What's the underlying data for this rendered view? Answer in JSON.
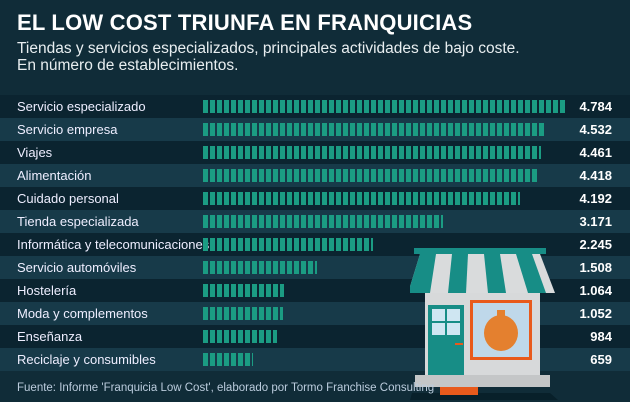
{
  "header": {
    "title": "EL LOW COST TRIUNFA EN FRANQUICIAS",
    "subtitle_1": "Tiendas y servicios especializados, principales actividades de bajo coste.",
    "subtitle_2": "En número de establecimientos."
  },
  "chart_data": {
    "type": "bar",
    "orientation": "horizontal",
    "categories": [
      "Servicio especializado",
      "Servicio empresa",
      "Viajes",
      "Alimentación",
      "Cuidado personal",
      "Tienda especializada",
      "Informática y telecomunicaciones",
      "Servicio automóviles",
      "Hostelería",
      "Moda y complementos",
      "Enseñanza",
      "Reciclaje y consumibles"
    ],
    "values": [
      4784,
      4532,
      4461,
      4418,
      4192,
      3171,
      2245,
      1508,
      1064,
      1052,
      984,
      659
    ],
    "value_labels": [
      "4.784",
      "4.532",
      "4.461",
      "4.418",
      "4.192",
      "3.171",
      "2.245",
      "1.508",
      "1.064",
      "1.052",
      "984",
      "659"
    ],
    "bar_color": "#1b9c83"
  },
  "footer": {
    "source": "Fuente: Informe 'Franquicia Low Cost', elaborado por Tormo Franchise Consulting"
  }
}
